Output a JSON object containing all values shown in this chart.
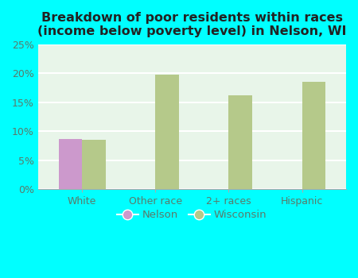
{
  "title": "Breakdown of poor residents within races\n(income below poverty level) in Nelson, WI",
  "categories": [
    "White",
    "Other race",
    "2+ races",
    "Hispanic"
  ],
  "nelson_values": [
    8.7,
    0,
    0,
    0
  ],
  "wisconsin_values": [
    8.5,
    19.7,
    16.2,
    18.5
  ],
  "nelson_color": "#cc99cc",
  "wisconsin_color": "#b5c98a",
  "bar_width": 0.32,
  "ylim": [
    0,
    25
  ],
  "yticks": [
    0,
    5,
    10,
    15,
    20,
    25
  ],
  "ytick_labels": [
    "0%",
    "5%",
    "10%",
    "15%",
    "20%",
    "25%"
  ],
  "figure_bg_color": "#00ffff",
  "plot_bg_color": "#e8f5e9",
  "grid_color": "#ffffff",
  "title_fontsize": 11.5,
  "tick_label_color": "#5a7a6a",
  "legend_labels": [
    "Nelson",
    "Wisconsin"
  ]
}
